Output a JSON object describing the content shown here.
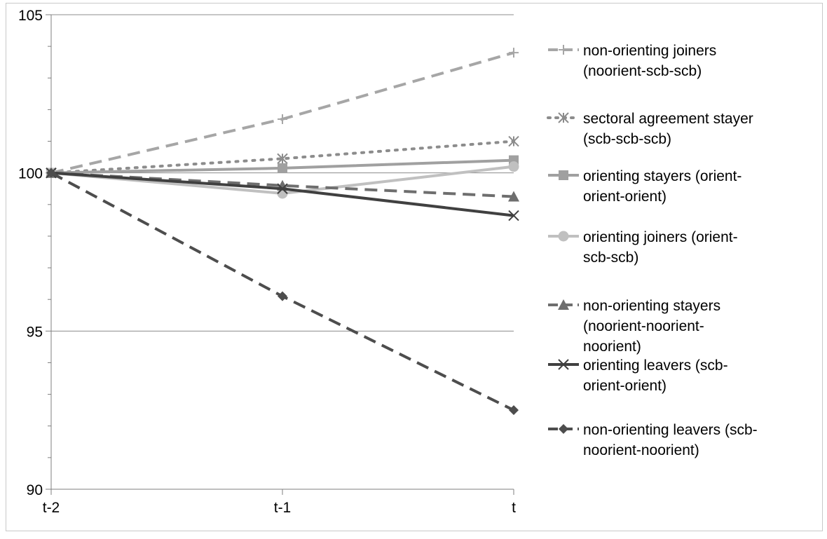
{
  "chart_data": {
    "type": "line",
    "title": "",
    "xlabel": "",
    "ylabel": "",
    "categories": [
      "t-2",
      "t-1",
      "t"
    ],
    "ylim": [
      90,
      105
    ],
    "yticks": [
      90,
      95,
      100,
      105
    ],
    "minor_ticks_every": 1,
    "grid": "horizontal major",
    "legend_position": "right",
    "series": [
      {
        "name": "non-orienting joiners (noorient-scb-scb)",
        "values": [
          100,
          101.7,
          103.8
        ],
        "color": "#a6a6a6",
        "dash": "dashed",
        "marker": "plus"
      },
      {
        "name": "sectoral agreement stayer (scb-scb-scb)",
        "values": [
          100,
          100.45,
          101.0
        ],
        "color": "#8c8c8c",
        "dash": "dotted",
        "marker": "asterisk"
      },
      {
        "name": "orienting stayers (orient-orient-orient)",
        "values": [
          100,
          100.15,
          100.4
        ],
        "color": "#a0a0a0",
        "dash": "solid",
        "marker": "square"
      },
      {
        "name": "orienting joiners (orient-scb-scb)",
        "values": [
          100,
          99.35,
          100.2
        ],
        "color": "#c0c0c0",
        "dash": "solid",
        "marker": "circle"
      },
      {
        "name": "non-orienting stayers (noorient-noorient-noorient)",
        "values": [
          100,
          99.6,
          99.25
        ],
        "color": "#6e6e6e",
        "dash": "dashed",
        "marker": "triangle"
      },
      {
        "name": "orienting leavers (scb-orient-orient)",
        "values": [
          100,
          99.5,
          98.65
        ],
        "color": "#404040",
        "dash": "solid",
        "marker": "x"
      },
      {
        "name": "non-orienting leavers (scb-noorient-noorient)",
        "values": [
          100,
          96.1,
          92.5
        ],
        "color": "#4d4d4d",
        "dash": "dashed",
        "marker": "diamond"
      }
    ],
    "legend_lines": [
      [
        "non-orienting joiners",
        "(noorient-scb-scb)"
      ],
      [
        "sectoral agreement stayer",
        "(scb-scb-scb)"
      ],
      [
        "orienting stayers (orient-",
        "orient-orient)"
      ],
      [
        "orienting joiners (orient-",
        "scb-scb)"
      ],
      [
        "non-orienting stayers",
        "(noorient-noorient-",
        "noorient)"
      ],
      [
        "orienting leavers (scb-",
        "orient-orient)"
      ],
      [
        "non-orienting leavers (scb-",
        "noorient-noorient)"
      ]
    ]
  }
}
